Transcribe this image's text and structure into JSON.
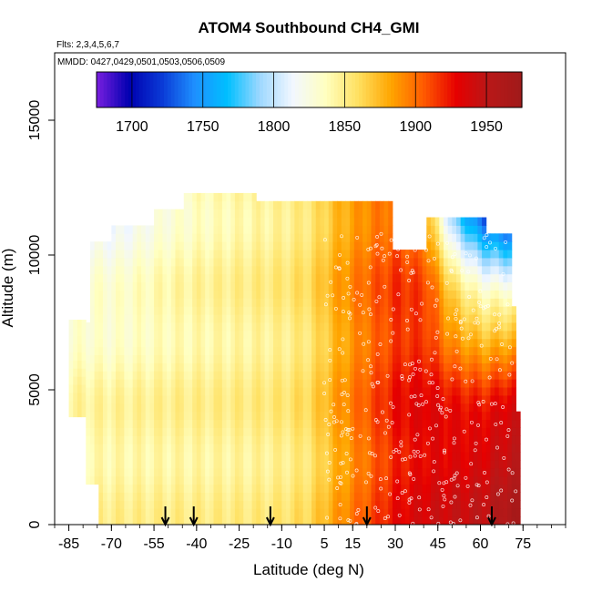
{
  "chart_data": {
    "type": "heatmap",
    "title": "ATOM4 Southbound CH4_GMI",
    "flights_note": "Flts: 2,3,4,5,6,7",
    "dates_note": "MMDD: 0427,0429,0501,0503,0506,0509",
    "xlabel": "Latitude (deg N)",
    "ylabel": "Altitude (m)",
    "xlim": [
      -90,
      90
    ],
    "ylim": [
      0,
      17500
    ],
    "x_ticks": [
      -85,
      -70,
      -55,
      -40,
      -25,
      -10,
      5,
      15,
      30,
      45,
      60,
      75
    ],
    "y_ticks": [
      0,
      5000,
      10000,
      15000
    ],
    "colorbar": {
      "range": [
        1675,
        1975
      ],
      "ticks": [
        1700,
        1750,
        1800,
        1850,
        1900,
        1950
      ],
      "colors": [
        "#7a1fe0",
        "#0000b0",
        "#0a3ad6",
        "#1e90ff",
        "#00bfff",
        "#9fd8ff",
        "#f2f7ff",
        "#ffffc0",
        "#ffe060",
        "#ffa500",
        "#ff5a00",
        "#e60000",
        "#b81818",
        "#a01a1a"
      ]
    },
    "arrow_latitudes": [
      -51,
      -41,
      -14,
      20,
      64
    ],
    "profile": {
      "latitudes": [
        -80,
        -70,
        -60,
        -50,
        -40,
        -30,
        -20,
        -10,
        0,
        10,
        20,
        30,
        40,
        50,
        60,
        70
      ],
      "ch4_low_altitude": [
        1845,
        1846,
        1846,
        1847,
        1847,
        1848,
        1849,
        1852,
        1860,
        1885,
        1905,
        1925,
        1935,
        1940,
        1945,
        1960
      ],
      "ch4_high_altitude": [
        1815,
        1812,
        1822,
        1832,
        1838,
        1842,
        1846,
        1850,
        1858,
        1880,
        1895,
        1905,
        1885,
        1780,
        1720,
        1700
      ]
    }
  }
}
